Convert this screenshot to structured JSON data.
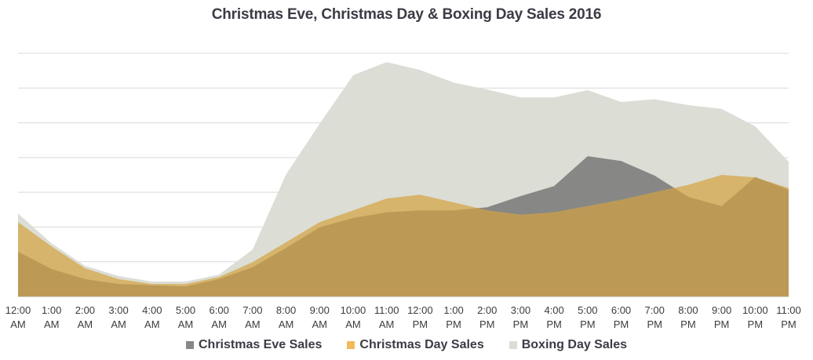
{
  "chart_data": {
    "type": "area",
    "title": "Christmas Eve, Christmas Day & Boxing Day Sales 2016",
    "xlabel": "",
    "ylabel": "",
    "grid": true,
    "ylim": [
      0,
      700
    ],
    "legend_position": "bottom",
    "categories": [
      [
        "12:00",
        "AM"
      ],
      [
        "1:00",
        "AM"
      ],
      [
        "2:00",
        "AM"
      ],
      [
        "3:00",
        "AM"
      ],
      [
        "4:00",
        "AM"
      ],
      [
        "5:00",
        "AM"
      ],
      [
        "6:00",
        "AM"
      ],
      [
        "7:00",
        "AM"
      ],
      [
        "8:00",
        "AM"
      ],
      [
        "9:00",
        "AM"
      ],
      [
        "10:00",
        "AM"
      ],
      [
        "11:00",
        "AM"
      ],
      [
        "12:00",
        "PM"
      ],
      [
        "1:00",
        "PM"
      ],
      [
        "2:00",
        "PM"
      ],
      [
        "3:00",
        "PM"
      ],
      [
        "4:00",
        "PM"
      ],
      [
        "5:00",
        "PM"
      ],
      [
        "6:00",
        "PM"
      ],
      [
        "7:00",
        "PM"
      ],
      [
        "8:00",
        "PM"
      ],
      [
        "9:00",
        "PM"
      ],
      [
        "10:00",
        "PM"
      ],
      [
        "11:00",
        "PM"
      ]
    ],
    "series": [
      {
        "name": "Boxing Day Sales",
        "color": "#dcddd5",
        "values": [
          239,
          153,
          88,
          59,
          43,
          43,
          63,
          135,
          352,
          497,
          637,
          675,
          652,
          616,
          596,
          573,
          573,
          594,
          560,
          568,
          551,
          540,
          490,
          388
        ]
      },
      {
        "name": "Christmas Eve Sales",
        "color": "#878885",
        "values": [
          129,
          79,
          50,
          36,
          32,
          29,
          50,
          84,
          140,
          199,
          226,
          242,
          248,
          248,
          257,
          289,
          318,
          404,
          390,
          348,
          287,
          260,
          344,
          307
        ]
      },
      {
        "name": "Christmas Day Sales",
        "color": "#d6b46b",
        "values": [
          214,
          144,
          81,
          50,
          36,
          36,
          56,
          99,
          156,
          214,
          248,
          282,
          293,
          271,
          248,
          235,
          242,
          260,
          278,
          300,
          321,
          350,
          343,
          312
        ]
      }
    ],
    "overlap_color": "#bc9a56",
    "legend": [
      "Christmas Eve Sales",
      "Christmas Day Sales",
      "Boxing Day Sales"
    ]
  }
}
